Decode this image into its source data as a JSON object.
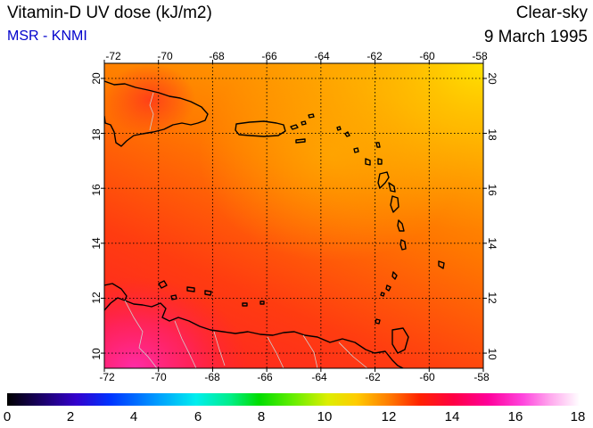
{
  "header": {
    "title": "Vitamin-D UV dose (kJ/m2)",
    "credit": "MSR - KNMI",
    "mode": "Clear-sky",
    "date": "9 March 1995"
  },
  "colors": {
    "credit": "#0000cc",
    "frame": "#000000",
    "field_low": "#ff4a00",
    "field_high": "#ffd800",
    "field_peak": "#ff2a90"
  },
  "map": {
    "longitude_ticks": [
      "-72",
      "-70",
      "-68",
      "-66",
      "-64",
      "-62",
      "-60",
      "-58"
    ],
    "latitude_ticks": [
      "20",
      "18",
      "16",
      "14",
      "12",
      "10"
    ]
  },
  "colorbar": {
    "tick_labels": [
      "0",
      "2",
      "4",
      "6",
      "8",
      "10",
      "12",
      "14",
      "16",
      "18"
    ],
    "range": [
      0,
      18
    ]
  }
}
